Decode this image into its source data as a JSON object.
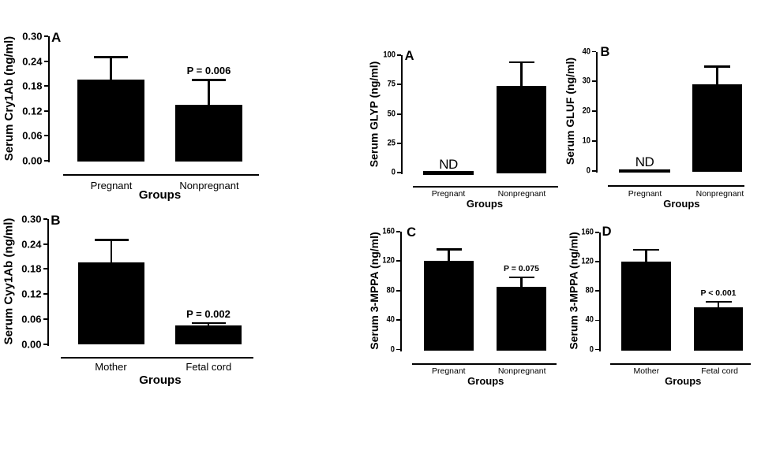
{
  "figure": {
    "background": "#ffffff",
    "ink_color": "#000000",
    "bar_color": "#000000",
    "description": "Six-panel black and white bar chart figure: serum Cry1Ab, GLYP, GLUF and 3-MPPA levels in pregnant vs nonpregnant women and mother vs fetal cord samples"
  },
  "chart_data": [
    {
      "id": "serum-cry1ab-groups",
      "panel_letter": "A",
      "figure_group": "left",
      "type": "bar",
      "ylabel": "Serum Cry1Ab (ng/ml)",
      "xlabel": "Groups",
      "categories": [
        "Pregnant",
        "Nonpregnant"
      ],
      "values": [
        0.195,
        0.135
      ],
      "error_plus": [
        0.055,
        0.06
      ],
      "nd_flags": [
        false,
        false
      ],
      "bar_annotations": [
        "",
        "P = 0.006"
      ],
      "ylim": [
        0,
        0.3
      ],
      "ytick_labels": [
        "0.00",
        "0.06",
        "0.12",
        "0.18",
        "0.24",
        "0.30"
      ],
      "grid": false,
      "legend": "none",
      "bar_color": "#000000"
    },
    {
      "id": "serum-cyy1ab-mother-fetal",
      "panel_letter": "B",
      "figure_group": "left",
      "type": "bar",
      "ylabel": "Serum Cyy1Ab (ng/ml)",
      "xlabel": "Groups",
      "categories": [
        "Mother",
        "Fetal cord"
      ],
      "values": [
        0.195,
        0.045
      ],
      "error_plus": [
        0.055,
        0.005
      ],
      "nd_flags": [
        false,
        false
      ],
      "bar_annotations": [
        "",
        "P = 0.002"
      ],
      "ylim": [
        0,
        0.3
      ],
      "ytick_labels": [
        "0.00",
        "0.06",
        "0.12",
        "0.18",
        "0.24",
        "0.30"
      ],
      "grid": false,
      "legend": "none",
      "bar_color": "#000000"
    },
    {
      "id": "serum-glyp-groups",
      "panel_letter": "A",
      "figure_group": "right",
      "type": "bar",
      "ylabel": "Serum GLYP (ng/ml)",
      "xlabel": "Groups",
      "categories": [
        "Pregnant",
        "Nonpregnant"
      ],
      "values": [
        0,
        74
      ],
      "error_plus": [
        0,
        20
      ],
      "nd_flags": [
        true,
        false
      ],
      "nd_text": "ND",
      "bar_annotations": [
        "",
        ""
      ],
      "ylim": [
        0,
        100
      ],
      "ytick_labels": [
        "0",
        "25",
        "50",
        "75",
        "100"
      ],
      "grid": false,
      "legend": "none",
      "bar_color": "#000000"
    },
    {
      "id": "serum-gluf-groups",
      "panel_letter": "B",
      "figure_group": "right",
      "type": "bar",
      "ylabel": "Serum GLUF (ng/ml)",
      "xlabel": "Groups",
      "categories": [
        "Pregnant",
        "Nonpregnant"
      ],
      "values": [
        0,
        29
      ],
      "error_plus": [
        0,
        6
      ],
      "nd_flags": [
        true,
        false
      ],
      "nd_text": "ND",
      "bar_annotations": [
        "",
        ""
      ],
      "ylim": [
        0,
        40
      ],
      "ytick_labels": [
        "0",
        "10",
        "20",
        "30",
        "40"
      ],
      "grid": false,
      "legend": "none",
      "bar_color": "#000000"
    },
    {
      "id": "serum-3mppa-groups",
      "panel_letter": "C",
      "figure_group": "right",
      "type": "bar",
      "ylabel": "Serum 3-MPPA (ng/ml)",
      "xlabel": "Groups",
      "categories": [
        "Pregnant",
        "Nonpregnant"
      ],
      "values": [
        120,
        85
      ],
      "error_plus": [
        16,
        13
      ],
      "nd_flags": [
        false,
        false
      ],
      "bar_annotations": [
        "",
        "P = 0.075"
      ],
      "ylim": [
        0,
        160
      ],
      "ytick_labels": [
        "0",
        "40",
        "80",
        "120",
        "160"
      ],
      "grid": false,
      "legend": "none",
      "bar_color": "#000000"
    },
    {
      "id": "serum-3mppa-mother-fetal",
      "panel_letter": "D",
      "figure_group": "right",
      "type": "bar",
      "ylabel": "Serum 3-MPPA (ng/ml)",
      "xlabel": "Groups",
      "categories": [
        "Mother",
        "Fetal cord"
      ],
      "values": [
        120,
        58
      ],
      "error_plus": [
        16,
        7
      ],
      "nd_flags": [
        false,
        false
      ],
      "bar_annotations": [
        "",
        "P < 0.001"
      ],
      "ylim": [
        0,
        160
      ],
      "ytick_labels": [
        "0",
        "40",
        "80",
        "120",
        "160"
      ],
      "grid": false,
      "legend": "none",
      "bar_color": "#000000"
    }
  ]
}
